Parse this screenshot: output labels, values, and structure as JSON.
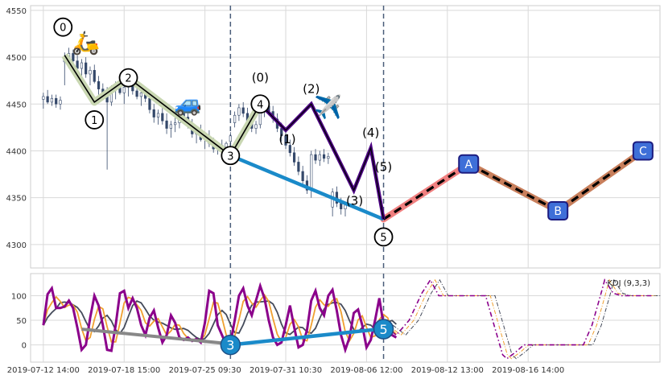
{
  "chart_data": [
    {
      "type": "line",
      "panel": "price",
      "title": "",
      "xlabel": "",
      "ylabel": "",
      "ylim": [
        4275,
        4555
      ],
      "yticks": [
        4300,
        4350,
        4400,
        4450,
        4500,
        4550
      ],
      "grid": true,
      "candles": [
        [
          4455,
          4462,
          4445,
          4458
        ],
        [
          4458,
          4465,
          4450,
          4452
        ],
        [
          4452,
          4460,
          4448,
          4456
        ],
        [
          4456,
          4460,
          4446,
          4450
        ],
        [
          4450,
          4458,
          4444,
          4454
        ],
        [
          4495,
          4505,
          4470,
          4498
        ],
        [
          4498,
          4510,
          4488,
          4504
        ],
        [
          4504,
          4508,
          4490,
          4496
        ],
        [
          4496,
          4502,
          4484,
          4488
        ],
        [
          4488,
          4498,
          4480,
          4494
        ],
        [
          4494,
          4500,
          4478,
          4482
        ],
        [
          4482,
          4490,
          4470,
          4486
        ],
        [
          4486,
          4492,
          4472,
          4474
        ],
        [
          4474,
          4480,
          4460,
          4466
        ],
        [
          4466,
          4472,
          4455,
          4460
        ],
        [
          4460,
          4468,
          4380,
          4452
        ],
        [
          4452,
          4470,
          4448,
          4466
        ],
        [
          4466,
          4474,
          4455,
          4470
        ],
        [
          4470,
          4476,
          4460,
          4462
        ],
        [
          4462,
          4470,
          4450,
          4468
        ],
        [
          4468,
          4476,
          4458,
          4472
        ],
        [
          4472,
          4478,
          4460,
          4464
        ],
        [
          4464,
          4470,
          4455,
          4458
        ],
        [
          4458,
          4466,
          4448,
          4462
        ],
        [
          4462,
          4468,
          4452,
          4456
        ],
        [
          4456,
          4462,
          4440,
          4444
        ],
        [
          4444,
          4450,
          4430,
          4436
        ],
        [
          4436,
          4444,
          4428,
          4440
        ],
        [
          4440,
          4446,
          4428,
          4432
        ],
        [
          4432,
          4440,
          4418,
          4424
        ],
        [
          4424,
          4432,
          4414,
          4428
        ],
        [
          4428,
          4436,
          4420,
          4430
        ],
        [
          4430,
          4444,
          4424,
          4440
        ],
        [
          4440,
          4446,
          4430,
          4436
        ],
        [
          4436,
          4442,
          4424,
          4428
        ],
        [
          4428,
          4434,
          4414,
          4418
        ],
        [
          4418,
          4426,
          4408,
          4420
        ],
        [
          4420,
          4428,
          4410,
          4412
        ],
        [
          4412,
          4420,
          4402,
          4416
        ],
        [
          4416,
          4422,
          4404,
          4408
        ],
        [
          4408,
          4414,
          4398,
          4402
        ],
        [
          4402,
          4410,
          4396,
          4406
        ],
        [
          4406,
          4412,
          4398,
          4404
        ],
        [
          4404,
          4410,
          4398,
          4408
        ],
        [
          4410,
          4420,
          4405,
          4416
        ],
        [
          4430,
          4442,
          4425,
          4438
        ],
        [
          4438,
          4450,
          4432,
          4446
        ],
        [
          4446,
          4452,
          4436,
          4440
        ],
        [
          4440,
          4446,
          4428,
          4432
        ],
        [
          4432,
          4438,
          4420,
          4424
        ],
        [
          4424,
          4432,
          4418,
          4428
        ],
        [
          4428,
          4446,
          4424,
          4442
        ],
        [
          4442,
          4452,
          4436,
          4448
        ],
        [
          4448,
          4454,
          4438,
          4442
        ],
        [
          4442,
          4448,
          4430,
          4434
        ],
        [
          4434,
          4440,
          4420,
          4424
        ],
        [
          4424,
          4430,
          4410,
          4416
        ],
        [
          4416,
          4422,
          4402,
          4406
        ],
        [
          4406,
          4412,
          4394,
          4398
        ],
        [
          4398,
          4404,
          4384,
          4388
        ],
        [
          4388,
          4394,
          4374,
          4378
        ],
        [
          4378,
          4384,
          4364,
          4368
        ],
        [
          4368,
          4374,
          4354,
          4358
        ],
        [
          4358,
          4400,
          4350,
          4396
        ],
        [
          4396,
          4402,
          4386,
          4390
        ],
        [
          4390,
          4400,
          4384,
          4396
        ],
        [
          4396,
          4402,
          4388,
          4392
        ],
        [
          4392,
          4398,
          4386,
          4394
        ],
        [
          4340,
          4360,
          4330,
          4356
        ],
        [
          4356,
          4362,
          4340,
          4344
        ],
        [
          4344,
          4350,
          4332,
          4338
        ],
        [
          4338,
          4346,
          4330,
          4342
        ]
      ],
      "wave": [
        [
          5,
          4502
        ],
        [
          12,
          4452
        ],
        [
          20,
          4478
        ],
        [
          44,
          4395
        ],
        [
          51,
          4450
        ],
        [
          57,
          4422
        ],
        [
          63,
          4450
        ],
        [
          73,
          4358
        ],
        [
          77,
          4403
        ],
        [
          80,
          4327
        ]
      ],
      "wave_labels": [
        {
          "i": 5,
          "y": 4502,
          "label": "0",
          "pos": "above-left"
        },
        {
          "i": 12,
          "y": 4452,
          "label": "1",
          "pos": "below"
        },
        {
          "i": 20,
          "y": 4478,
          "label": "2",
          "pos": "on"
        },
        {
          "i": 44,
          "y": 4395,
          "label": "3",
          "pos": "on"
        },
        {
          "i": 51,
          "y": 4450,
          "label": "4",
          "pos": "on"
        },
        {
          "i": 80,
          "y": 4327,
          "label": "5",
          "pos": "below"
        }
      ],
      "subwave": [
        [
          44,
          4395
        ],
        [
          51,
          4450
        ],
        [
          57,
          4422
        ],
        [
          63,
          4450
        ],
        [
          73,
          4358
        ],
        [
          77,
          4403
        ],
        [
          80,
          4327
        ]
      ],
      "subwave_labels": [
        {
          "i": 51,
          "y": 4450,
          "label": "(0)"
        },
        {
          "i": 57,
          "y": 4422,
          "label": "(1)"
        },
        {
          "i": 63,
          "y": 4450,
          "label": "(2)"
        },
        {
          "i": 73,
          "y": 4358,
          "label": "(3)"
        },
        {
          "i": 77,
          "y": 4403,
          "label": "(4)"
        },
        {
          "i": 80,
          "y": 4327,
          "label": "(5)"
        }
      ],
      "trendline": [
        [
          44,
          4395
        ],
        [
          80,
          4327
        ]
      ],
      "projection": [
        {
          "i": 80,
          "y": 4327
        },
        {
          "i": 100,
          "y": 4386,
          "label": "A"
        },
        {
          "i": 121,
          "y": 4336,
          "label": "B"
        },
        {
          "i": 141,
          "y": 4400,
          "label": "C"
        }
      ],
      "emoji": [
        {
          "i": 10,
          "y": 4516,
          "glyph": "🛵"
        },
        {
          "i": 34,
          "y": 4451,
          "glyph": "🚙"
        },
        {
          "i": 67,
          "y": 4447,
          "glyph": "✈️"
        }
      ],
      "vlines": [
        44,
        80
      ],
      "colors": {
        "wave": "#000000",
        "wave_bg": "#c9d7b2",
        "subwave": "#4b0082",
        "trend": "#1a8ac9",
        "proj_a": "#f08080",
        "proj_b": "#c87f5c",
        "marker_fill": "#3e6fd8",
        "marker_edge": "#1c1c80",
        "candle": "#34486a",
        "vline": "#4a5d7a"
      }
    },
    {
      "type": "line",
      "panel": "indicator",
      "title": "",
      "legend": "KDJ (9,3,3)",
      "legend_position": "top-right",
      "ylim": [
        -35,
        145
      ],
      "yticks": [
        0,
        50,
        100
      ],
      "grid": true,
      "categories": [
        "2019-07-12 14:00",
        "2019-07-18 15:00",
        "2019-07-25 09:30",
        "2019-07-31 10:30",
        "2019-08-06 12:00",
        "2019-08-12 13:00",
        "2019-08-16 14:00"
      ],
      "tick_index": [
        0,
        19,
        38,
        57,
        76,
        95,
        114
      ],
      "x_range": [
        -3,
        145
      ],
      "j_keys": [
        [
          0,
          40
        ],
        [
          1,
          103
        ],
        [
          2,
          115
        ],
        [
          3,
          75
        ],
        [
          4,
          75
        ],
        [
          5,
          78
        ],
        [
          6,
          90
        ],
        [
          7,
          75
        ],
        [
          8,
          35
        ],
        [
          9,
          -10
        ],
        [
          10,
          0
        ],
        [
          11,
          55
        ],
        [
          12,
          100
        ],
        [
          13,
          80
        ],
        [
          14,
          40
        ],
        [
          15,
          -10
        ],
        [
          16,
          -12
        ],
        [
          17,
          40
        ],
        [
          18,
          105
        ],
        [
          19,
          110
        ],
        [
          20,
          75
        ],
        [
          21,
          95
        ],
        [
          22,
          75
        ],
        [
          23,
          40
        ],
        [
          24,
          20
        ],
        [
          25,
          55
        ],
        [
          26,
          70
        ],
        [
          27,
          35
        ],
        [
          28,
          5
        ],
        [
          29,
          20
        ],
        [
          30,
          60
        ],
        [
          31,
          45
        ],
        [
          32,
          15
        ],
        [
          33,
          10
        ],
        [
          34,
          15
        ],
        [
          35,
          8
        ],
        [
          36,
          12
        ],
        [
          37,
          5
        ],
        [
          38,
          45
        ],
        [
          39,
          110
        ],
        [
          40,
          105
        ],
        [
          41,
          40
        ],
        [
          42,
          20
        ],
        [
          43,
          0
        ],
        [
          44,
          3
        ],
        [
          45,
          50
        ],
        [
          46,
          100
        ],
        [
          47,
          115
        ],
        [
          48,
          80
        ],
        [
          49,
          60
        ],
        [
          50,
          90
        ],
        [
          51,
          120
        ],
        [
          52,
          95
        ],
        [
          53,
          50
        ],
        [
          54,
          15
        ],
        [
          55,
          0
        ],
        [
          56,
          5
        ],
        [
          57,
          40
        ],
        [
          58,
          80
        ],
        [
          59,
          35
        ],
        [
          60,
          -5
        ],
        [
          61,
          0
        ],
        [
          62,
          30
        ],
        [
          63,
          90
        ],
        [
          64,
          110
        ],
        [
          65,
          75
        ],
        [
          66,
          60
        ],
        [
          67,
          100
        ],
        [
          68,
          112
        ],
        [
          69,
          70
        ],
        [
          70,
          20
        ],
        [
          71,
          -10
        ],
        [
          72,
          15
        ],
        [
          73,
          65
        ],
        [
          74,
          72
        ],
        [
          75,
          40
        ],
        [
          76,
          -5
        ],
        [
          77,
          10
        ],
        [
          78,
          50
        ],
        [
          79,
          95
        ],
        [
          80,
          40
        ],
        [
          81,
          30
        ],
        [
          82,
          20
        ],
        [
          83,
          15
        ]
      ],
      "j_proj": [
        [
          80,
          40
        ],
        [
          83,
          20
        ],
        [
          86,
          50
        ],
        [
          89,
          105
        ],
        [
          91,
          132
        ],
        [
          93,
          100
        ],
        [
          95,
          100
        ],
        [
          101,
          100
        ],
        [
          104,
          100
        ],
        [
          106,
          40
        ],
        [
          108,
          -20
        ],
        [
          109,
          -28
        ],
        [
          111,
          -15
        ],
        [
          113,
          0
        ],
        [
          121,
          0
        ],
        [
          127,
          0
        ],
        [
          129,
          40
        ],
        [
          131,
          100
        ],
        [
          132,
          132
        ],
        [
          134,
          105
        ],
        [
          136,
          100
        ],
        [
          143,
          100
        ]
      ],
      "gray_line": [
        [
          9,
          32
        ],
        [
          44,
          2
        ]
      ],
      "blue_line": [
        [
          44,
          0
        ],
        [
          80,
          33
        ]
      ],
      "markers": [
        {
          "i": 44,
          "y": 0,
          "label": "3"
        },
        {
          "i": 80,
          "y": 32,
          "label": "5"
        }
      ],
      "colors": {
        "k": "#f0a030",
        "d": "#444a5a",
        "j": "#8b008b",
        "gray": "#888888",
        "blue": "#1a8ac9",
        "marker": "#1a8ac9"
      }
    }
  ]
}
